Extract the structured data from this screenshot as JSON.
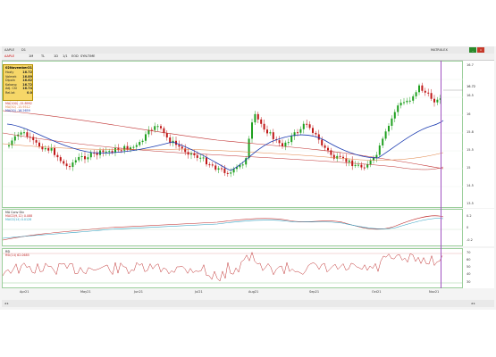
{
  "titlebar": {
    "symbol": "AAPLE",
    "timeframe": "D1",
    "items": [
      "1M",
      "TL",
      "1D",
      "1/1",
      "EOD",
      "SYN-TIME"
    ],
    "right_label": "MATRIX-EX"
  },
  "tooltip": {
    "title": "02November21",
    "rows": [
      {
        "label": "Hozly",
        "value": "16.72"
      },
      {
        "label": "Valmek",
        "value": "16.89"
      },
      {
        "label": "Dipoln",
        "value": "16.62"
      },
      {
        "label": "Kakang",
        "value": "16.72"
      },
      {
        "label": "Adj. Chl",
        "value": "16.74"
      },
      {
        "label": "Rel.lat",
        "value": "0.0"
      }
    ]
  },
  "price_legend": [
    {
      "text": "MA(200)  -17.3752",
      "color": "#c03030"
    },
    {
      "text": "MA(100)  -15.8992",
      "color": "#c03030"
    },
    {
      "text": "MA(50)  -15.9512",
      "color": "#e08040"
    },
    {
      "text": "MA(20)  -16.2659",
      "color": "#1a3ab0"
    }
  ],
  "price_axis": {
    "ticks": [
      "16.7",
      "16.5",
      "16",
      "15.8",
      "15.5",
      "15",
      "14.5",
      "14",
      "13.5"
    ],
    "current": "16.72"
  },
  "macd": {
    "title": "MA Conv Div",
    "lines": [
      {
        "text": "MACD(9,12)  0.088",
        "color": "#c03030"
      },
      {
        "text": "MACD(14)  0.0128",
        "color": "#30a0c0"
      }
    ],
    "ticks": [
      "0.2",
      "0",
      "-0.2"
    ]
  },
  "rsi": {
    "title": "RSI",
    "line": {
      "text": "RSI(14)  62.0685",
      "color": "#c03030"
    },
    "ticks": [
      "70",
      "60",
      "50",
      "40",
      "30"
    ]
  },
  "dates": [
    "Apr21",
    "May21",
    "Jun21",
    "Jul21",
    "Aug21",
    "Sep21",
    "Oct21",
    "Nov21"
  ],
  "status": {
    "left": "◂ ▸",
    "right": "◂ ▸"
  },
  "colors": {
    "up": "#1fa01f",
    "down": "#c01818",
    "ma_slow": "#c03030",
    "ma_mid": "#e08040",
    "ma_fast": "#1a3ab0",
    "cursor": "#a050c0",
    "grid": "#9ccf9c"
  }
}
